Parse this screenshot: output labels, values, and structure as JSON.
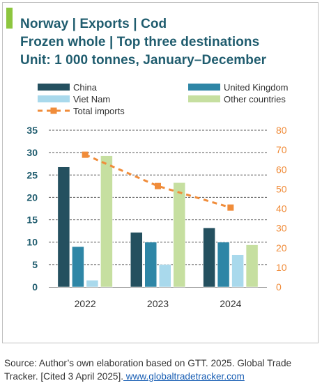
{
  "header": {
    "title_line1": "Norway | Exports | Cod",
    "title_line2": "Frozen whole | Top three destinations",
    "title_line3": "Unit: 1 000 tonnes, January–December"
  },
  "colors": {
    "accent": "#8dc63f",
    "title": "#1f5c6e",
    "china": "#24505f",
    "united_kingdom": "#2e86a6",
    "viet_nam": "#a9d9ec",
    "other_countries": "#c6dfa0",
    "total_imports": "#f08c3a"
  },
  "chart_data": {
    "type": "bar",
    "categories": [
      "2022",
      "2023",
      "2024"
    ],
    "series": [
      {
        "name": "China",
        "axis": "left",
        "values": [
          26.8,
          12.2,
          13.2
        ]
      },
      {
        "name": "United Kingdom",
        "axis": "left",
        "values": [
          9.0,
          10.0,
          10.0
        ]
      },
      {
        "name": "Viet Nam",
        "axis": "left",
        "values": [
          1.5,
          5.0,
          7.2
        ]
      },
      {
        "name": "Other countries",
        "axis": "left",
        "values": [
          29.3,
          23.3,
          9.4
        ]
      },
      {
        "name": "Total imports",
        "axis": "right",
        "type": "line",
        "style": "dashed",
        "values": [
          67.5,
          51.5,
          40.5
        ]
      }
    ],
    "y_left": {
      "range": [
        0,
        35
      ],
      "ticks": [
        "0",
        "5",
        "10",
        "15",
        "20",
        "25",
        "30",
        "35"
      ]
    },
    "y_right": {
      "range": [
        0,
        80
      ],
      "ticks": [
        "0",
        "10",
        "20",
        "30",
        "40",
        "50",
        "60",
        "70",
        "80"
      ]
    },
    "grid": "horizontal dashed",
    "legend_position": "top"
  },
  "source": {
    "text": "Source: Author’s own elaboration based on GTT. 2025. Global Trade Tracker. [Cited 3 April 2025].",
    "link": " www.globaltradetracker.com"
  }
}
